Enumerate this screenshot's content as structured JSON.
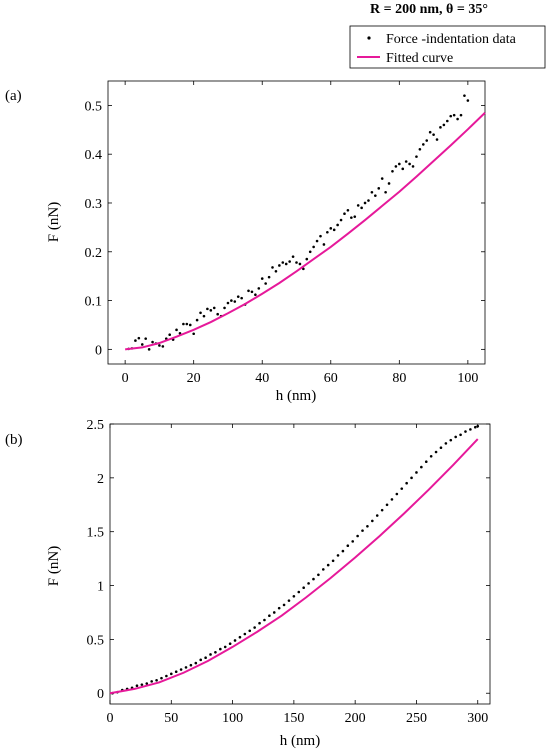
{
  "header": {
    "title": "R = 200 nm, θ = 35°"
  },
  "legend": {
    "entries": [
      {
        "label": "Force -indentation data",
        "marker": "dot",
        "color": "#000000"
      },
      {
        "label": "Fitted curve",
        "marker": "line",
        "color": "#e6199a"
      }
    ],
    "placement": "top-right"
  },
  "colors": {
    "data": "#000000",
    "fit": "#e6199a"
  },
  "chart_data": [
    {
      "panel_label": "(a)",
      "type": "scatter",
      "xlabel": "h (nm)",
      "ylabel": "F (nN)",
      "xlim": [
        -5,
        105
      ],
      "ylim": [
        -0.03,
        0.55
      ],
      "xticks": [
        0,
        20,
        40,
        60,
        80,
        100
      ],
      "yticks": [
        0,
        0.1,
        0.2,
        0.3,
        0.4,
        0.5
      ],
      "grid": false,
      "series": [
        {
          "name": "Force -indentation data",
          "kind": "points",
          "x": [
            1,
            2,
            3,
            4,
            5,
            6,
            7,
            8,
            9,
            10,
            11,
            12,
            13,
            14,
            15,
            16,
            17,
            18,
            19,
            20,
            21,
            22,
            23,
            24,
            25,
            26,
            27,
            28,
            29,
            30,
            31,
            32,
            33,
            34,
            35,
            36,
            37,
            38,
            39,
            40,
            41,
            42,
            43,
            44,
            45,
            46,
            47,
            48,
            49,
            50,
            51,
            52,
            53,
            54,
            55,
            56,
            57,
            58,
            59,
            60,
            61,
            62,
            63,
            64,
            65,
            66,
            67,
            68,
            69,
            70,
            71,
            72,
            73,
            74,
            75,
            76,
            77,
            78,
            79,
            80,
            81,
            82,
            83,
            84,
            85,
            86,
            87,
            88,
            89,
            90,
            91,
            92,
            93,
            94,
            95,
            96,
            97,
            98,
            99,
            100
          ],
          "y": [
            0.001,
            0.002,
            0.018,
            0.023,
            0.01,
            0.022,
            0.0,
            0.015,
            0.012,
            0.008,
            0.006,
            0.022,
            0.03,
            0.02,
            0.04,
            0.033,
            0.052,
            0.052,
            0.05,
            0.032,
            0.06,
            0.075,
            0.068,
            0.083,
            0.08,
            0.085,
            0.072,
            0.068,
            0.085,
            0.095,
            0.1,
            0.098,
            0.108,
            0.105,
            0.092,
            0.12,
            0.118,
            0.112,
            0.125,
            0.145,
            0.135,
            0.148,
            0.168,
            0.16,
            0.172,
            0.178,
            0.175,
            0.18,
            0.19,
            0.178,
            0.175,
            0.165,
            0.185,
            0.2,
            0.21,
            0.222,
            0.232,
            0.215,
            0.24,
            0.248,
            0.245,
            0.255,
            0.265,
            0.278,
            0.285,
            0.27,
            0.272,
            0.295,
            0.29,
            0.3,
            0.305,
            0.322,
            0.315,
            0.33,
            0.35,
            0.322,
            0.34,
            0.365,
            0.375,
            0.38,
            0.37,
            0.385,
            0.38,
            0.375,
            0.395,
            0.41,
            0.42,
            0.428,
            0.445,
            0.44,
            0.43,
            0.455,
            0.46,
            0.468,
            0.478,
            0.48,
            0.472,
            0.48,
            0.52,
            0.51
          ]
        },
        {
          "name": "Fitted curve",
          "kind": "line",
          "x": [
            0,
            5,
            10,
            15,
            20,
            25,
            30,
            35,
            40,
            45,
            50,
            55,
            60,
            65,
            70,
            75,
            80,
            85,
            90,
            95,
            100,
            105
          ],
          "y": [
            0.0,
            0.004,
            0.013,
            0.026,
            0.04,
            0.056,
            0.074,
            0.093,
            0.114,
            0.136,
            0.16,
            0.185,
            0.21,
            0.237,
            0.265,
            0.294,
            0.323,
            0.354,
            0.386,
            0.418,
            0.451,
            0.485
          ]
        }
      ]
    },
    {
      "panel_label": "(b)",
      "type": "scatter",
      "xlabel": "h (nm)",
      "ylabel": "F (nN)",
      "xlim": [
        0,
        310
      ],
      "ylim": [
        -0.1,
        2.5
      ],
      "xticks": [
        0,
        50,
        100,
        150,
        200,
        250,
        300
      ],
      "yticks": [
        0,
        0.5,
        1,
        1.5,
        2,
        2.5
      ],
      "grid": false,
      "series": [
        {
          "name": "Force -indentation data",
          "kind": "points",
          "x": [
            2,
            6,
            10,
            14,
            18,
            22,
            26,
            30,
            34,
            38,
            42,
            46,
            50,
            54,
            58,
            62,
            66,
            70,
            74,
            78,
            82,
            86,
            90,
            94,
            98,
            102,
            106,
            110,
            114,
            118,
            122,
            126,
            130,
            134,
            138,
            142,
            146,
            150,
            154,
            158,
            162,
            166,
            170,
            174,
            178,
            182,
            186,
            190,
            194,
            198,
            202,
            206,
            210,
            214,
            218,
            222,
            226,
            230,
            234,
            238,
            242,
            246,
            250,
            254,
            258,
            262,
            266,
            270,
            274,
            278,
            282,
            286,
            290,
            294,
            298,
            300
          ],
          "y": [
            0.0,
            0.01,
            0.03,
            0.04,
            0.05,
            0.07,
            0.08,
            0.09,
            0.11,
            0.12,
            0.14,
            0.16,
            0.18,
            0.2,
            0.22,
            0.24,
            0.26,
            0.28,
            0.31,
            0.33,
            0.36,
            0.38,
            0.41,
            0.43,
            0.46,
            0.49,
            0.52,
            0.55,
            0.58,
            0.61,
            0.65,
            0.68,
            0.72,
            0.75,
            0.79,
            0.82,
            0.86,
            0.9,
            0.94,
            0.98,
            1.02,
            1.06,
            1.1,
            1.15,
            1.19,
            1.23,
            1.28,
            1.32,
            1.37,
            1.41,
            1.46,
            1.51,
            1.55,
            1.6,
            1.65,
            1.7,
            1.75,
            1.8,
            1.85,
            1.9,
            1.95,
            2.0,
            2.05,
            2.1,
            2.15,
            2.2,
            2.24,
            2.28,
            2.32,
            2.35,
            2.38,
            2.4,
            2.43,
            2.45,
            2.47,
            2.48
          ]
        },
        {
          "name": "Fitted curve",
          "kind": "line",
          "x": [
            0,
            20,
            40,
            60,
            80,
            100,
            120,
            140,
            160,
            180,
            200,
            220,
            240,
            260,
            280,
            300
          ],
          "y": [
            0.0,
            0.04,
            0.1,
            0.19,
            0.3,
            0.43,
            0.57,
            0.72,
            0.89,
            1.07,
            1.26,
            1.46,
            1.67,
            1.89,
            2.12,
            2.36
          ]
        }
      ]
    }
  ]
}
